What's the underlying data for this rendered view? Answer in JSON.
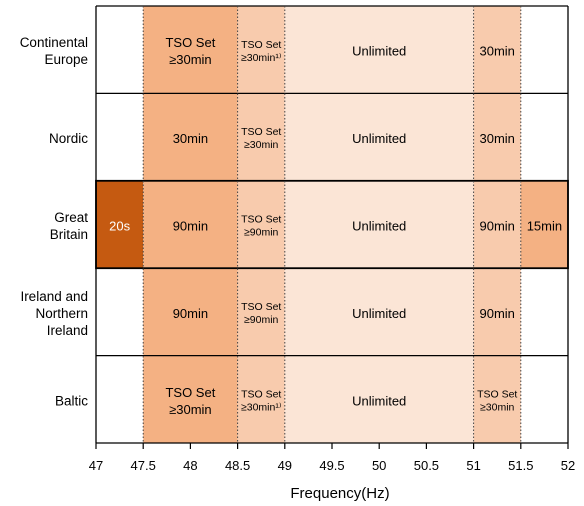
{
  "chart_data": {
    "type": "table",
    "xlabel": "Frequency(Hz)",
    "xlim": [
      47,
      52
    ],
    "xticks": [
      "47",
      "47.5",
      "48",
      "48.5",
      "49",
      "49.5",
      "50",
      "50.5",
      "51",
      "51.5",
      "52"
    ],
    "colors": {
      "c20s": "#c55a11",
      "c90": "#f4b183",
      "c_mid": "#f8cbad",
      "c_unl": "#fbe5d6",
      "c15": "#f4b183",
      "grid": "#000000"
    },
    "rows": [
      {
        "label": [
          "Continental",
          "Europe"
        ],
        "segments": [
          {
            "from": 47.5,
            "to": 48.5,
            "lines": [
              "TSO Set",
              "≥30min"
            ],
            "color": "c90",
            "small": false
          },
          {
            "from": 48.5,
            "to": 49.0,
            "lines": [
              "TSO Set",
              "≥30min¹⁾"
            ],
            "color": "c_mid",
            "small": true
          },
          {
            "from": 49.0,
            "to": 51.0,
            "lines": [
              "Unlimited"
            ],
            "color": "c_unl",
            "small": false
          },
          {
            "from": 51.0,
            "to": 51.5,
            "lines": [
              "30min"
            ],
            "color": "c_mid",
            "small": false
          }
        ]
      },
      {
        "label": [
          "Nordic"
        ],
        "segments": [
          {
            "from": 47.5,
            "to": 48.5,
            "lines": [
              "30min"
            ],
            "color": "c90",
            "small": false
          },
          {
            "from": 48.5,
            "to": 49.0,
            "lines": [
              "TSO Set",
              "≥30min"
            ],
            "color": "c_mid",
            "small": true
          },
          {
            "from": 49.0,
            "to": 51.0,
            "lines": [
              "Unlimited"
            ],
            "color": "c_unl",
            "small": false
          },
          {
            "from": 51.0,
            "to": 51.5,
            "lines": [
              "30min"
            ],
            "color": "c_mid",
            "small": false
          }
        ]
      },
      {
        "label": [
          "Great",
          "Britain"
        ],
        "segments": [
          {
            "from": 47.0,
            "to": 47.5,
            "lines": [
              "20s"
            ],
            "color": "c20s",
            "small": false,
            "textColor": "#ffffff"
          },
          {
            "from": 47.5,
            "to": 48.5,
            "lines": [
              "90min"
            ],
            "color": "c90",
            "small": false
          },
          {
            "from": 48.5,
            "to": 49.0,
            "lines": [
              "TSO Set",
              "≥90min"
            ],
            "color": "c_mid",
            "small": true
          },
          {
            "from": 49.0,
            "to": 51.0,
            "lines": [
              "Unlimited"
            ],
            "color": "c_unl",
            "small": false
          },
          {
            "from": 51.0,
            "to": 51.5,
            "lines": [
              "90min"
            ],
            "color": "c_mid",
            "small": false
          },
          {
            "from": 51.5,
            "to": 52.0,
            "lines": [
              "15min"
            ],
            "color": "c15",
            "small": false
          }
        ]
      },
      {
        "label": [
          "Ireland and",
          "Northern",
          "Ireland"
        ],
        "segments": [
          {
            "from": 47.5,
            "to": 48.5,
            "lines": [
              "90min"
            ],
            "color": "c90",
            "small": false
          },
          {
            "from": 48.5,
            "to": 49.0,
            "lines": [
              "TSO Set",
              "≥90min"
            ],
            "color": "c_mid",
            "small": true
          },
          {
            "from": 49.0,
            "to": 51.0,
            "lines": [
              "Unlimited"
            ],
            "color": "c_unl",
            "small": false
          },
          {
            "from": 51.0,
            "to": 51.5,
            "lines": [
              "90min"
            ],
            "color": "c_mid",
            "small": false
          }
        ]
      },
      {
        "label": [
          "Baltic"
        ],
        "segments": [
          {
            "from": 47.5,
            "to": 48.5,
            "lines": [
              "TSO Set",
              "≥30min"
            ],
            "color": "c90",
            "small": false
          },
          {
            "from": 48.5,
            "to": 49.0,
            "lines": [
              "TSO Set",
              "≥30min¹⁾"
            ],
            "color": "c_mid",
            "small": true
          },
          {
            "from": 49.0,
            "to": 51.0,
            "lines": [
              "Unlimited"
            ],
            "color": "c_unl",
            "small": false
          },
          {
            "from": 51.0,
            "to": 51.5,
            "lines": [
              "TSO Set",
              "≥30min"
            ],
            "color": "c_mid",
            "small": true
          }
        ]
      }
    ]
  }
}
